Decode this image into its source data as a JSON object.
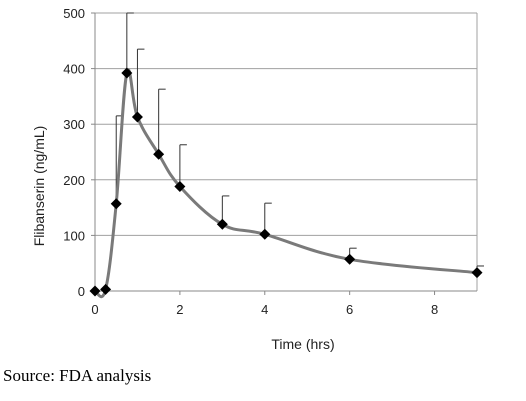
{
  "chart_data": {
    "type": "line",
    "xlabel": "Time (hrs)",
    "ylabel": "Flibanserin (ng/mL)",
    "xlim": [
      0,
      9
    ],
    "ylim": [
      0,
      500
    ],
    "xticks": [
      0,
      2,
      4,
      6,
      8
    ],
    "yticks": [
      0,
      100,
      200,
      300,
      400,
      500
    ],
    "grid": "horizontal",
    "legend": "none",
    "colors": {
      "line": "#7a7a7a",
      "marker": "#000000",
      "grid": "#a0a0a0",
      "error_bar": "#333333"
    },
    "series": [
      {
        "x": [
          0,
          0.25,
          0.5,
          0.75,
          1,
          1.5,
          2,
          3,
          4,
          6,
          9
        ],
        "y": [
          0,
          3,
          157,
          392,
          313,
          246,
          188,
          120,
          102,
          57,
          33
        ],
        "error_upper": [
          0,
          3,
          315,
          500,
          435,
          363,
          263,
          171,
          158,
          77,
          45
        ]
      }
    ]
  },
  "source_note": "Source: FDA analysis"
}
